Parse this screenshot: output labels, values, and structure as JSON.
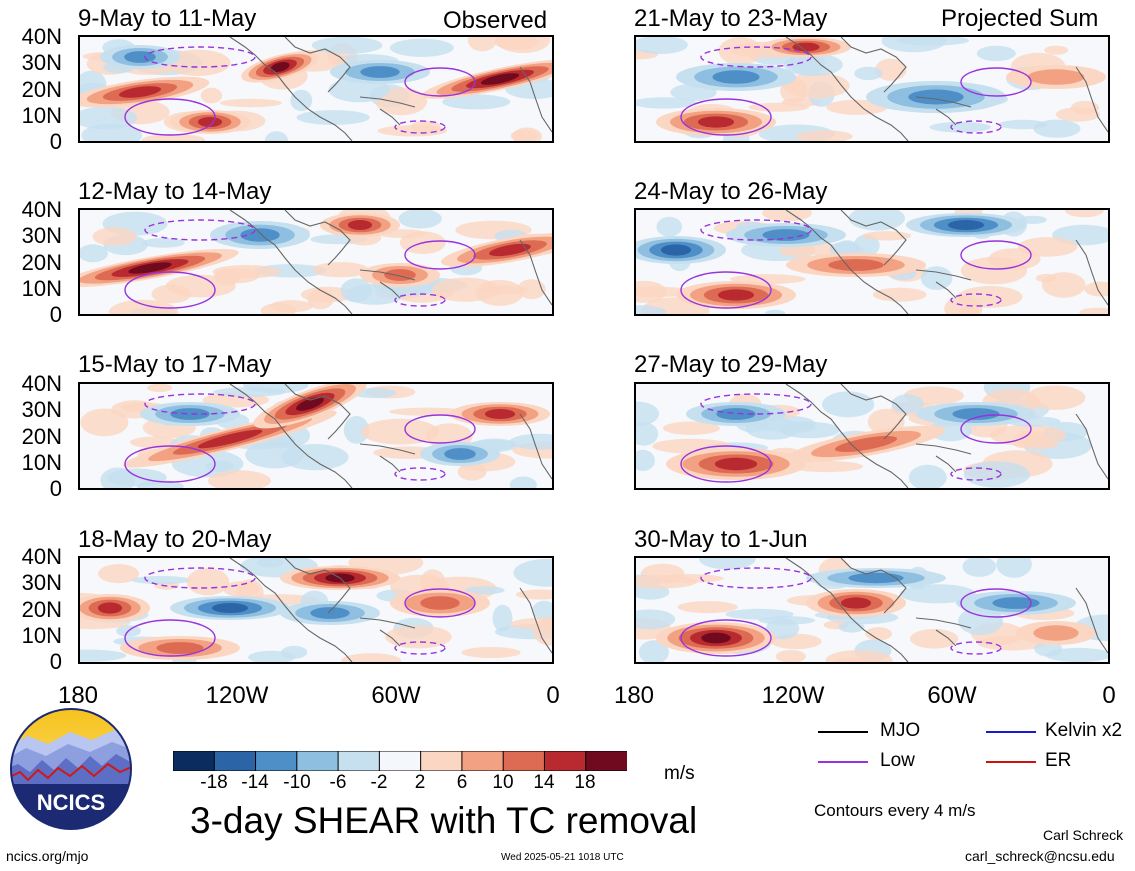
{
  "panels": [
    {
      "title": "9-May to 11-May",
      "corner": "Observed"
    },
    {
      "title": "21-May to 23-May",
      "corner": "Projected Sum"
    },
    {
      "title": "12-May to 14-May",
      "corner": ""
    },
    {
      "title": "24-May to 26-May",
      "corner": ""
    },
    {
      "title": "15-May to 17-May",
      "corner": ""
    },
    {
      "title": "27-May to 29-May",
      "corner": ""
    },
    {
      "title": "18-May to 20-May",
      "corner": ""
    },
    {
      "title": "30-May to 1-Jun",
      "corner": ""
    }
  ],
  "y_ticks": [
    "40N",
    "30N",
    "20N",
    "10N",
    "0"
  ],
  "x_ticks": [
    "180",
    "120W",
    "60W",
    "0"
  ],
  "colorbar": {
    "colors": [
      "#0b2c5e",
      "#2c64a8",
      "#4f8fc7",
      "#8fbfe0",
      "#c6e0f0",
      "#f4f7fb",
      "#fbd6c2",
      "#f3a183",
      "#dd6a52",
      "#b82a2f",
      "#700a1f"
    ],
    "labels": [
      "-18",
      "-14",
      "-10",
      "-6",
      "-2",
      "2",
      "6",
      "10",
      "14",
      "18"
    ],
    "unit": "m/s"
  },
  "legend": [
    {
      "label": "MJO",
      "color": "#000000"
    },
    {
      "label": "Kelvin x2",
      "color": "#1a1acc"
    },
    {
      "label": "Low",
      "color": "#9933dd"
    },
    {
      "label": "ER",
      "color": "#cc1111"
    }
  ],
  "contour_note": "Contours every 4 m/s",
  "main_title": "3-day SHEAR with TC removal",
  "logo_text": "NCICS",
  "footer": {
    "url": "ncics.org/mjo",
    "timestamp": "Wed 2025-05-21 1018 UTC",
    "author": "Carl Schreck",
    "email": "carl_schreck@ncsu.edu"
  }
}
